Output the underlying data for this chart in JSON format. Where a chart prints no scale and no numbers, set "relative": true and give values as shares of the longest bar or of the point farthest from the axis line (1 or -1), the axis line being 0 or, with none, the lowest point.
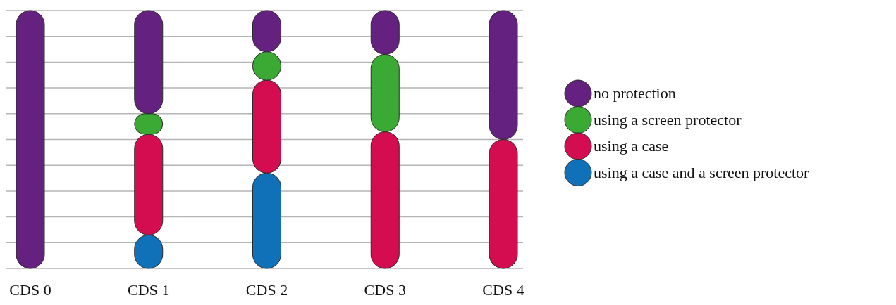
{
  "chart_data": {
    "type": "bar",
    "stacked": true,
    "relative": true,
    "grid": "y",
    "legend": "right",
    "categories": [
      "CDS 0",
      "CDS 1",
      "CDS 2",
      "CDS 3",
      "CDS 4"
    ],
    "series": [
      {
        "name": "using a case and a screen protector",
        "color": "#1070b8",
        "values": [
          0,
          0.13,
          0.37,
          0,
          0
        ]
      },
      {
        "name": "using a case",
        "color": "#d40c50",
        "values": [
          0,
          0.39,
          0.36,
          0.53,
          0.5
        ]
      },
      {
        "name": "using a screen protector",
        "color": "#3aaa35",
        "values": [
          0,
          0.08,
          0.11,
          0.3,
          0
        ]
      },
      {
        "name": "no protection",
        "color": "#64217f",
        "values": [
          1,
          0.4,
          0.16,
          0.17,
          0.5
        ]
      }
    ]
  }
}
